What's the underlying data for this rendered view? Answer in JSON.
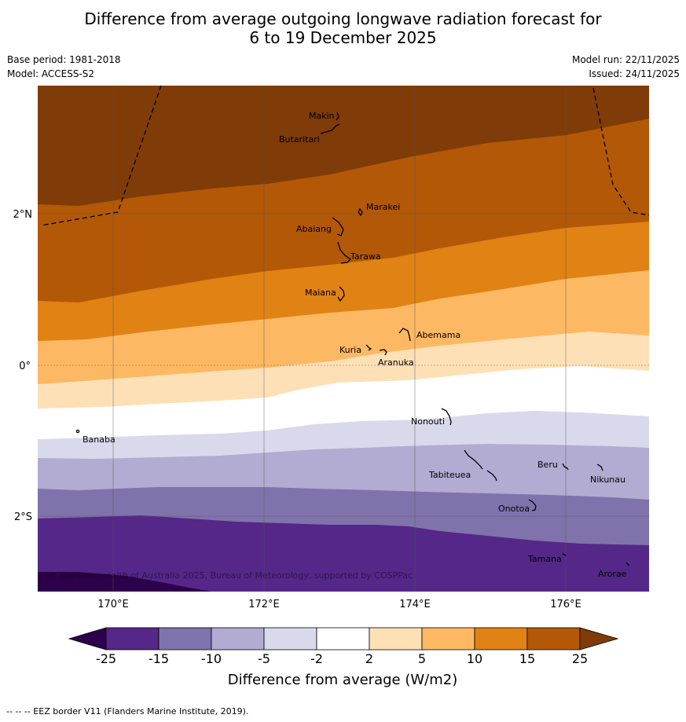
{
  "title_line1": "Difference from average outgoing longwave radiation forecast for",
  "title_line2": "6 to 19 December 2025",
  "base_period": "Base period: 1981-2018",
  "model": "Model: ACCESS-S2",
  "model_run": "Model run: 22/11/2025",
  "issued": "Issued: 24/11/2025",
  "copyright": "© Commonwealth of Australia 2025, Bureau of Meteorology, supported by COSPPac",
  "footnote": "--  --  -- EEZ border V11 (Flanders Marine Institute, 2019).",
  "colorbar": {
    "label": "Difference from average (W/m2)",
    "ticks": [
      "-25",
      "-15",
      "-10",
      "-5",
      "-2",
      "2",
      "5",
      "10",
      "15",
      "25"
    ],
    "bins": [
      {
        "range": "< -25",
        "color": "#2d004b"
      },
      {
        "range": "-25 to -15",
        "color": "#542788"
      },
      {
        "range": "-15 to -10",
        "color": "#8073ac"
      },
      {
        "range": "-10 to -5",
        "color": "#b2abd2"
      },
      {
        "range": "-5 to -2",
        "color": "#d8daeb"
      },
      {
        "range": "-2 to 2",
        "color": "#ffffff"
      },
      {
        "range": "2 to 5",
        "color": "#fee0b6"
      },
      {
        "range": "5 to 10",
        "color": "#fdb863"
      },
      {
        "range": "10 to 15",
        "color": "#e08214"
      },
      {
        "range": "15 to 25",
        "color": "#b35806"
      },
      {
        "range": "> 25",
        "color": "#7f3b08"
      }
    ]
  },
  "axes": {
    "lon_ticks": [
      "170°E",
      "172°E",
      "174°E",
      "176°E"
    ],
    "lat_ticks": [
      "2°N",
      "0°",
      "2°S"
    ]
  },
  "places": [
    "Makin",
    "Butaritari",
    "Marakei",
    "Abaiang",
    "Tarawa",
    "Maiana",
    "Abemama",
    "Kuria",
    "Aranuka",
    "Nonouti",
    "Banaba",
    "Tabiteuea",
    "Beru",
    "Nikunau",
    "Onotoa",
    "Tamana",
    "Arorae"
  ]
}
